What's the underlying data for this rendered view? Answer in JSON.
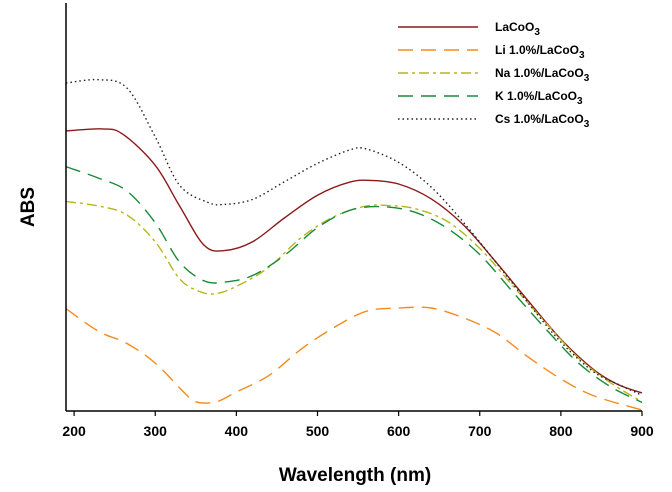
{
  "chart_data": {
    "type": "line",
    "title": "",
    "xlabel": "Wavelength (nm)",
    "ylabel": "ABS",
    "xlim": [
      190,
      900
    ],
    "ylim": [
      0,
      100
    ],
    "xticks": [
      200,
      300,
      400,
      500,
      600,
      700,
      800,
      900
    ],
    "y_tick_labels_shown": false,
    "grid": false,
    "legend_position": "top-right",
    "series": [
      {
        "name_parts": [
          "LaCoO",
          "3"
        ],
        "color": "#8b1a1a",
        "dash": "solid",
        "points": [
          [
            190,
            85.4
          ],
          [
            235,
            86.0
          ],
          [
            260,
            84.4
          ],
          [
            300,
            74.9
          ],
          [
            330,
            62.5
          ],
          [
            360,
            50.6
          ],
          [
            385,
            48.9
          ],
          [
            420,
            51.6
          ],
          [
            460,
            59.0
          ],
          [
            500,
            65.8
          ],
          [
            540,
            69.8
          ],
          [
            565,
            70.3
          ],
          [
            600,
            69.2
          ],
          [
            640,
            64.7
          ],
          [
            680,
            56.7
          ],
          [
            720,
            45.4
          ],
          [
            760,
            33.5
          ],
          [
            800,
            21.9
          ],
          [
            840,
            12.7
          ],
          [
            870,
            8.1
          ],
          [
            900,
            5.5
          ]
        ]
      },
      {
        "name_parts": [
          "Li 1.0%/LaCoO",
          "3"
        ],
        "color": "#f28c1e",
        "dash": "long-dash",
        "points": [
          [
            190,
            31.2
          ],
          [
            230,
            24.3
          ],
          [
            265,
            20.6
          ],
          [
            300,
            14.6
          ],
          [
            335,
            5.8
          ],
          [
            350,
            2.8
          ],
          [
            375,
            2.8
          ],
          [
            400,
            5.8
          ],
          [
            440,
            10.8
          ],
          [
            480,
            18.9
          ],
          [
            520,
            25.4
          ],
          [
            560,
            30.4
          ],
          [
            600,
            31.4
          ],
          [
            640,
            31.4
          ],
          [
            680,
            28.4
          ],
          [
            720,
            23.8
          ],
          [
            760,
            16.4
          ],
          [
            800,
            9.8
          ],
          [
            840,
            4.7
          ],
          [
            900,
            0.3
          ]
        ]
      },
      {
        "name_parts": [
          "Na 1.0%/LaCoO",
          "3"
        ],
        "color": "#b5b51a",
        "dash": "dash-dot",
        "points": [
          [
            190,
            63.9
          ],
          [
            230,
            62.5
          ],
          [
            265,
            59.8
          ],
          [
            300,
            51.6
          ],
          [
            330,
            40.3
          ],
          [
            355,
            36.4
          ],
          [
            375,
            35.8
          ],
          [
            400,
            38.0
          ],
          [
            440,
            43.8
          ],
          [
            480,
            52.9
          ],
          [
            520,
            59.2
          ],
          [
            560,
            62.5
          ],
          [
            590,
            62.6
          ],
          [
            620,
            61.7
          ],
          [
            660,
            57.8
          ],
          [
            700,
            49.6
          ],
          [
            740,
            38.4
          ],
          [
            780,
            27.3
          ],
          [
            820,
            16.6
          ],
          [
            860,
            8.8
          ],
          [
            900,
            2.8
          ]
        ]
      },
      {
        "name_parts": [
          "K 1.0%/LaCoO",
          "3"
        ],
        "color": "#1a8a3a",
        "dash": "long-dash",
        "points": [
          [
            190,
            74.5
          ],
          [
            230,
            71.0
          ],
          [
            265,
            67.1
          ],
          [
            300,
            57.4
          ],
          [
            330,
            45.4
          ],
          [
            360,
            39.7
          ],
          [
            385,
            39.3
          ],
          [
            420,
            41.3
          ],
          [
            460,
            47.6
          ],
          [
            500,
            55.9
          ],
          [
            540,
            61.2
          ],
          [
            580,
            62.3
          ],
          [
            620,
            60.6
          ],
          [
            660,
            55.7
          ],
          [
            700,
            47.7
          ],
          [
            740,
            36.5
          ],
          [
            780,
            25.4
          ],
          [
            820,
            15.0
          ],
          [
            860,
            7.6
          ],
          [
            900,
            2.6
          ]
        ]
      },
      {
        "name_parts": [
          "Cs 1.0%/LaCoO",
          "3"
        ],
        "color": "#222222",
        "dash": "dotted",
        "points": [
          [
            190,
            100
          ],
          [
            230,
            101
          ],
          [
            265,
            98.5
          ],
          [
            300,
            83.6
          ],
          [
            330,
            68.8
          ],
          [
            365,
            63.6
          ],
          [
            385,
            63.0
          ],
          [
            420,
            64.5
          ],
          [
            460,
            70.0
          ],
          [
            500,
            75.5
          ],
          [
            540,
            79.6
          ],
          [
            560,
            79.9
          ],
          [
            600,
            75.8
          ],
          [
            640,
            68.3
          ],
          [
            680,
            57.5
          ],
          [
            720,
            45.3
          ],
          [
            760,
            32.8
          ],
          [
            800,
            21.0
          ],
          [
            840,
            12.0
          ],
          [
            870,
            8.2
          ],
          [
            900,
            4.8
          ]
        ]
      }
    ]
  }
}
